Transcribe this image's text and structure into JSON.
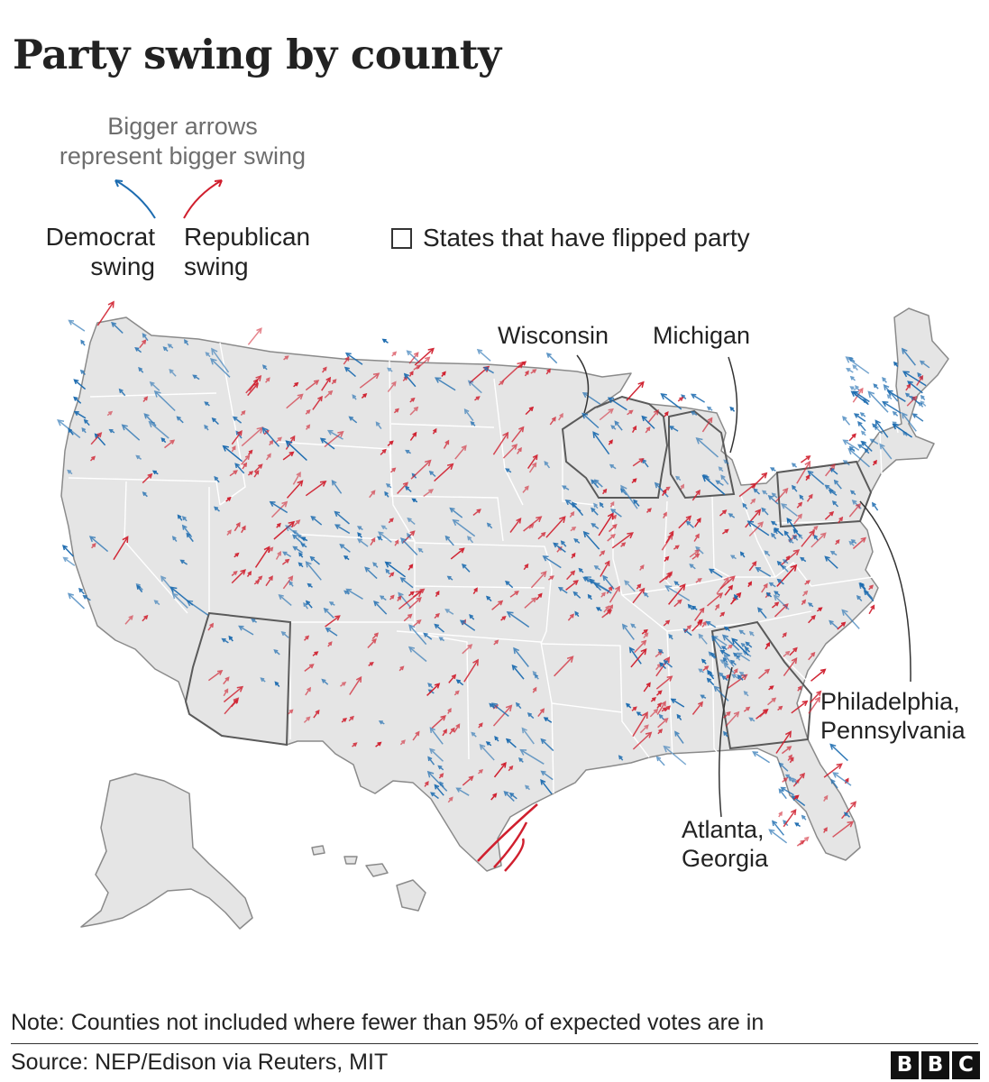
{
  "title": "Party swing by county",
  "legend": {
    "note_lines": [
      "Bigger arrows",
      "represent bigger swing"
    ],
    "democrat_lines": [
      "Democrat",
      "swing"
    ],
    "republican_lines": [
      "Republican",
      "swing"
    ],
    "flipped_label": "States that have flipped party"
  },
  "annotations": {
    "wisconsin": [
      "Wisconsin"
    ],
    "michigan": [
      "Michigan"
    ],
    "philadelphia": [
      "Philadelphia,",
      "Pennsylvania"
    ],
    "atlanta": [
      "Atlanta,",
      "Georgia"
    ]
  },
  "note": "Note: Counties not included where fewer than 95% of expected votes are in",
  "source": "Source: NEP/Edison via Reuters, MIT",
  "logo": [
    "B",
    "B",
    "C"
  ],
  "colors": {
    "democrat": "#1d6cb0",
    "republican": "#d01f2e",
    "land": "#e5e5e5",
    "border": "#ffffff",
    "flipped_border": "#5a5a5a"
  }
}
